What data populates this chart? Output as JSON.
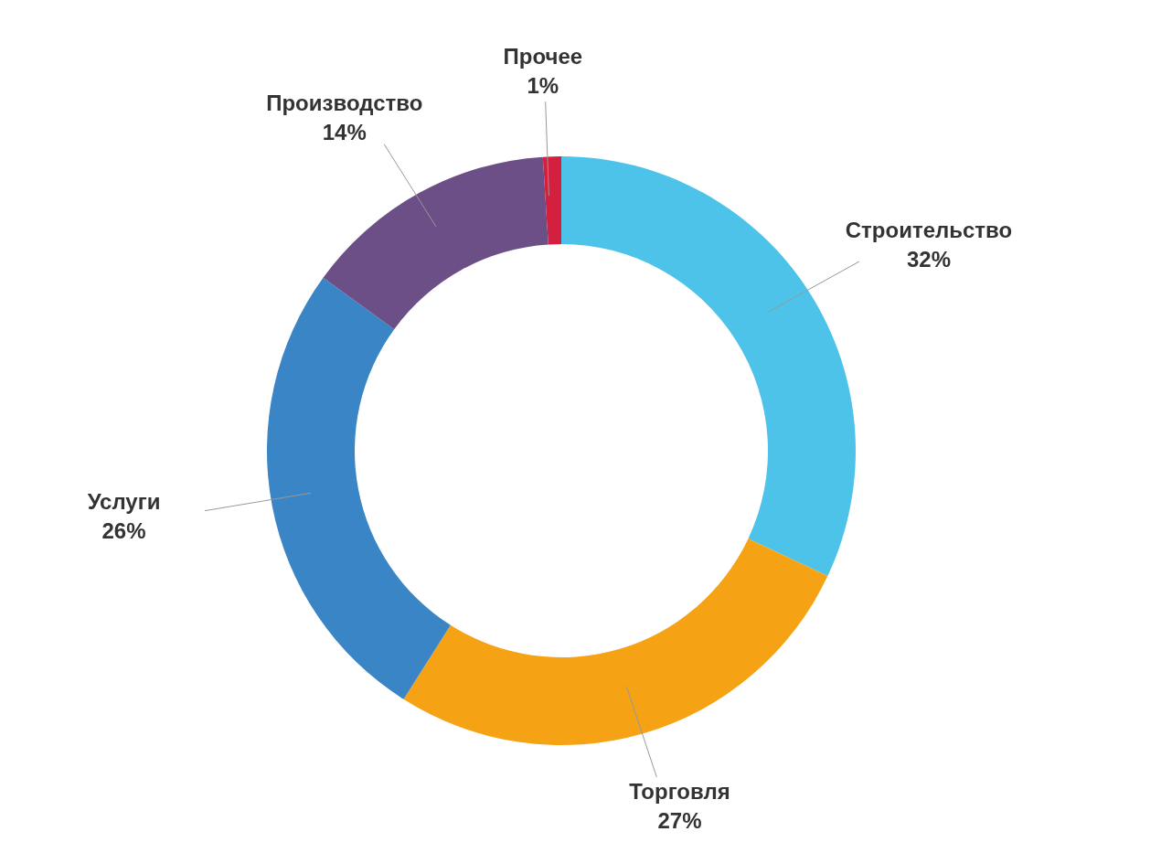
{
  "chart_data": {
    "type": "donut",
    "categories": [
      "Строительство",
      "Торговля",
      "Услуги",
      "Производство",
      "Прочее"
    ],
    "values": [
      32,
      27,
      26,
      14,
      1
    ],
    "value_labels": [
      "32%",
      "27%",
      "26%",
      "14%",
      "1%"
    ],
    "colors": [
      "#4dc3ea",
      "#f5a214",
      "#3a85c6",
      "#6b4f86",
      "#d3203f"
    ],
    "legend": false
  }
}
